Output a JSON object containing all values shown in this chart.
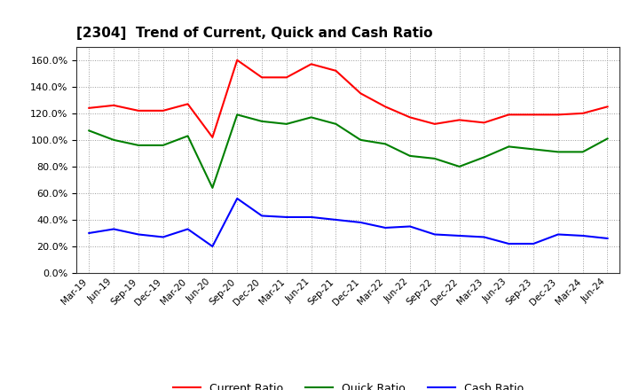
{
  "title": "[2304]  Trend of Current, Quick and Cash Ratio",
  "labels": [
    "Mar-19",
    "Jun-19",
    "Sep-19",
    "Dec-19",
    "Mar-20",
    "Jun-20",
    "Sep-20",
    "Dec-20",
    "Mar-21",
    "Jun-21",
    "Sep-21",
    "Dec-21",
    "Mar-22",
    "Jun-22",
    "Sep-22",
    "Dec-22",
    "Mar-23",
    "Jun-23",
    "Sep-23",
    "Dec-23",
    "Mar-24",
    "Jun-24"
  ],
  "current_ratio": [
    1.24,
    1.26,
    1.22,
    1.22,
    1.27,
    1.02,
    1.6,
    1.47,
    1.47,
    1.57,
    1.52,
    1.35,
    1.25,
    1.17,
    1.12,
    1.15,
    1.13,
    1.19,
    1.19,
    1.19,
    1.2,
    1.25
  ],
  "quick_ratio": [
    1.07,
    1.0,
    0.96,
    0.96,
    1.03,
    0.64,
    1.19,
    1.14,
    1.12,
    1.17,
    1.12,
    1.0,
    0.97,
    0.88,
    0.86,
    0.8,
    0.87,
    0.95,
    0.93,
    0.91,
    0.91,
    1.01
  ],
  "cash_ratio": [
    0.3,
    0.33,
    0.29,
    0.27,
    0.33,
    0.2,
    0.56,
    0.43,
    0.42,
    0.42,
    0.4,
    0.38,
    0.34,
    0.35,
    0.29,
    0.28,
    0.27,
    0.22,
    0.22,
    0.29,
    0.28,
    0.26
  ],
  "current_color": "#FF0000",
  "quick_color": "#008000",
  "cash_color": "#0000FF",
  "ylim": [
    0.0,
    1.7
  ],
  "yticks": [
    0.0,
    0.2,
    0.4,
    0.6,
    0.8,
    1.0,
    1.2,
    1.4,
    1.6
  ],
  "background_color": "#ffffff",
  "grid_color": "#999999",
  "legend_labels": [
    "Current Ratio",
    "Quick Ratio",
    "Cash Ratio"
  ]
}
